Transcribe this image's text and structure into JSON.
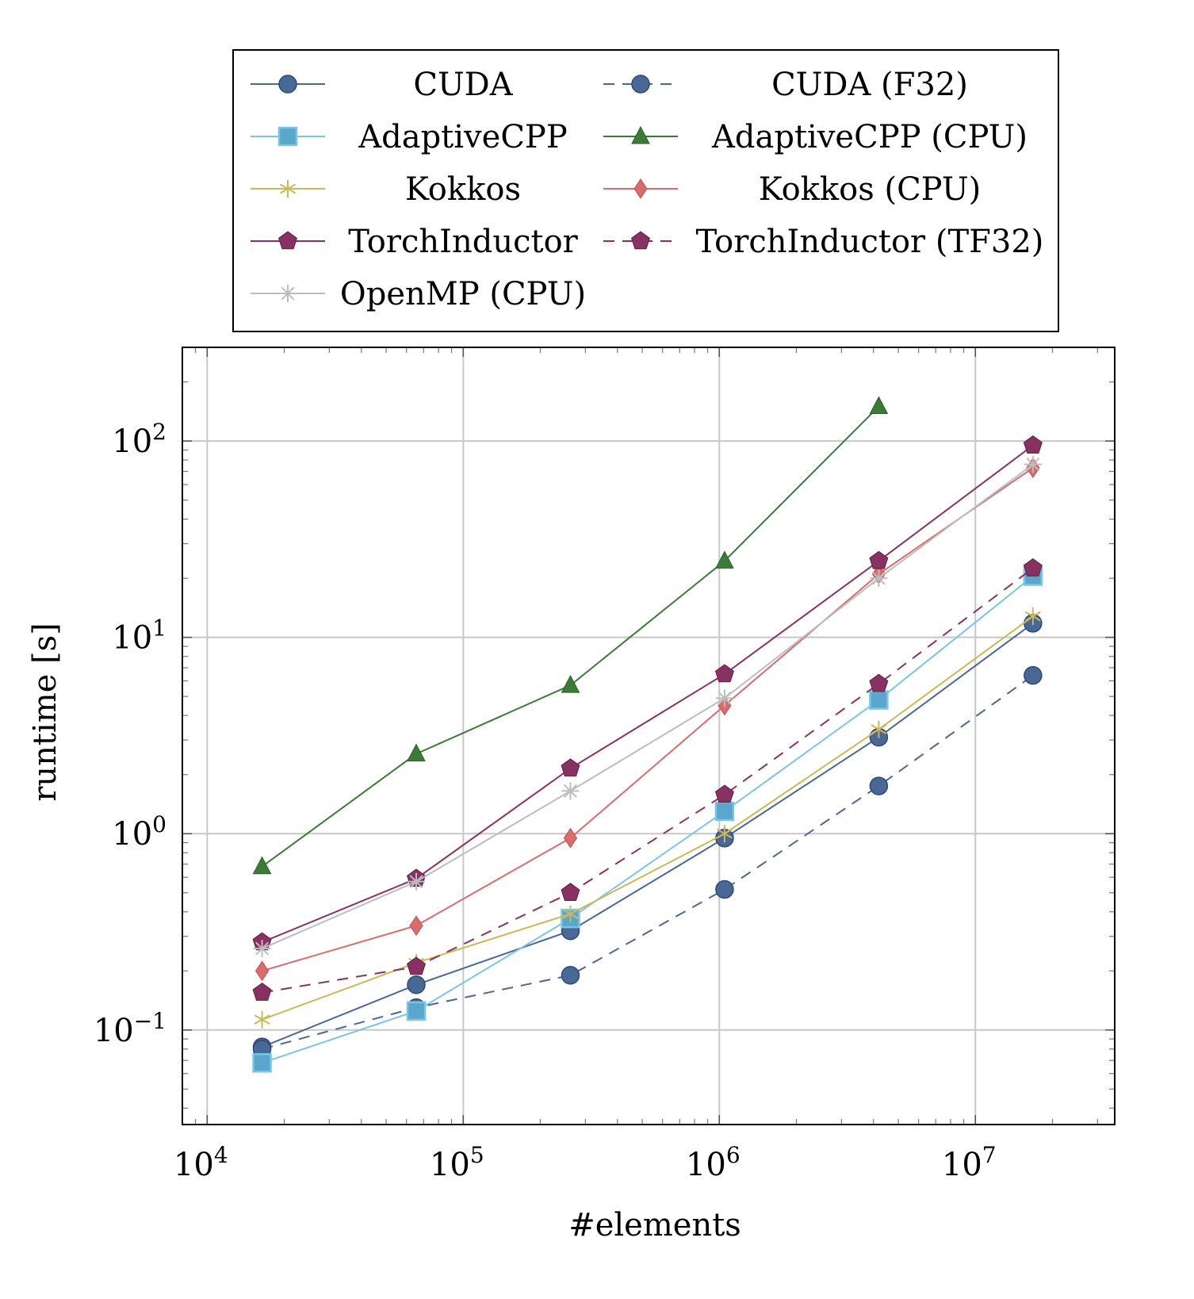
{
  "chart_data": {
    "type": "line",
    "xlabel": "#elements",
    "ylabel": "runtime [s]",
    "xscale": "log",
    "yscale": "log",
    "xlim": [
      8000,
      35000000
    ],
    "ylim": [
      0.033,
      300
    ],
    "grid": true,
    "legend_position": "top-outside",
    "x_tick_labels": [
      {
        "base": "10",
        "exp": "4",
        "value": 10000
      },
      {
        "base": "10",
        "exp": "5",
        "value": 100000
      },
      {
        "base": "10",
        "exp": "6",
        "value": 1000000
      },
      {
        "base": "10",
        "exp": "7",
        "value": 10000000
      }
    ],
    "y_tick_labels": [
      {
        "base": "10",
        "exp": "−1",
        "value": 0.1
      },
      {
        "base": "10",
        "exp": "0",
        "value": 1
      },
      {
        "base": "10",
        "exp": "1",
        "value": 10
      },
      {
        "base": "10",
        "exp": "2",
        "value": 100
      }
    ],
    "series": [
      {
        "name": "CUDA",
        "color": "#4a6896",
        "marker": "circle",
        "dash": false,
        "x": [
          16384,
          65536,
          262144,
          1048576,
          4194304,
          16777216
        ],
        "y": [
          0.082,
          0.17,
          0.32,
          0.95,
          3.1,
          11.8
        ]
      },
      {
        "name": "CUDA (F32)",
        "color": "#4a6896",
        "marker": "circle",
        "dash": true,
        "x": [
          16384,
          65536,
          262144,
          1048576,
          4194304,
          16777216
        ],
        "y": [
          0.08,
          0.13,
          0.19,
          0.52,
          1.75,
          6.4
        ]
      },
      {
        "name": "AdaptiveCPP",
        "color": "#7cc4e4",
        "marker": "square",
        "dash": false,
        "x": [
          16384,
          65536,
          262144,
          1048576,
          4194304,
          16777216
        ],
        "y": [
          0.068,
          0.125,
          0.37,
          1.3,
          4.8,
          20.5
        ]
      },
      {
        "name": "AdaptiveCPP (CPU)",
        "color": "#3c7a37",
        "marker": "triangle",
        "dash": false,
        "x": [
          16384,
          65536,
          262144,
          1048576,
          4194304
        ],
        "y": [
          0.68,
          2.55,
          5.7,
          24.5,
          150
        ]
      },
      {
        "name": "Kokkos",
        "color": "#cdb858",
        "marker": "star",
        "dash": false,
        "x": [
          16384,
          65536,
          262144,
          1048576,
          4194304,
          16777216
        ],
        "y": [
          0.113,
          0.22,
          0.39,
          1.0,
          3.4,
          12.8
        ]
      },
      {
        "name": "Kokkos (CPU)",
        "color": "#da6c6c",
        "marker": "diamond",
        "dash": false,
        "x": [
          16384,
          65536,
          262144,
          1048576,
          4194304,
          16777216
        ],
        "y": [
          0.2,
          0.34,
          0.95,
          4.5,
          21,
          73
        ]
      },
      {
        "name": "TorchInductor",
        "color": "#883264",
        "marker": "pentagon",
        "dash": false,
        "x": [
          16384,
          65536,
          262144,
          1048576,
          4194304,
          16777216
        ],
        "y": [
          0.28,
          0.59,
          2.15,
          6.5,
          24.5,
          95
        ]
      },
      {
        "name": "TorchInductor (TF32)",
        "color": "#883264",
        "marker": "pentagon",
        "dash": true,
        "x": [
          16384,
          65536,
          262144,
          1048576,
          4194304,
          16777216
        ],
        "y": [
          0.155,
          0.21,
          0.5,
          1.58,
          5.8,
          22.5
        ]
      },
      {
        "name": "OpenMP (CPU)",
        "color": "#bdbdbd",
        "marker": "asterisk",
        "dash": false,
        "x": [
          16384,
          65536,
          262144,
          1048576,
          4194304,
          16777216
        ],
        "y": [
          0.26,
          0.57,
          1.65,
          4.9,
          20,
          76
        ]
      }
    ]
  }
}
